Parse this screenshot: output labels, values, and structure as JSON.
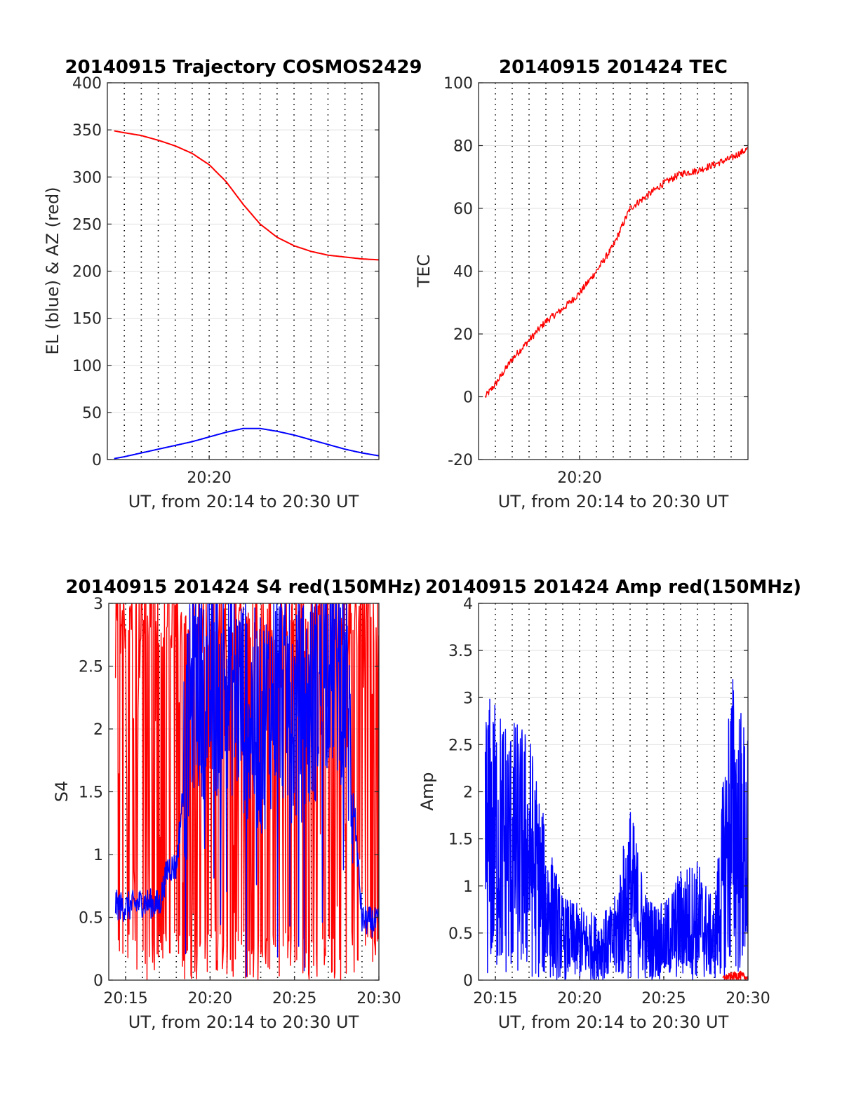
{
  "chart_data": [
    {
      "type": "line",
      "title": "20140915 Trajectory COSMOS2429",
      "xlabel": "UT, from 20:14 to 20:30 UT",
      "ylabel": "EL (blue) & AZ (red)",
      "xlim": [
        "20:14",
        "20:30"
      ],
      "ylim": [
        0,
        400
      ],
      "x_ticks": [
        "20:20"
      ],
      "y_ticks": [
        "0",
        "50",
        "100",
        "150",
        "200",
        "250",
        "300",
        "350",
        "400"
      ],
      "grid": "dotted vertical minute lines, horizontal grid",
      "series": [
        {
          "color": "#ff0000",
          "x": [
            "20:14:24",
            "20:15",
            "20:16",
            "20:17",
            "20:18",
            "20:19",
            "20:20",
            "20:21",
            "20:22",
            "20:23",
            "20:24",
            "20:25",
            "20:26",
            "20:27",
            "20:28",
            "20:29",
            "20:30"
          ],
          "values": [
            349,
            347,
            344,
            339,
            333,
            325,
            313,
            295,
            271,
            250,
            236,
            227,
            221,
            217,
            215,
            213,
            212
          ]
        },
        {
          "color": "#0000ff",
          "x": [
            "20:14:24",
            "20:15",
            "20:16",
            "20:17",
            "20:18",
            "20:19",
            "20:20",
            "20:21",
            "20:22",
            "20:23",
            "20:24",
            "20:25",
            "20:26",
            "20:27",
            "20:28",
            "20:29",
            "20:30"
          ],
          "values": [
            1,
            3,
            7,
            11,
            15,
            19,
            24,
            29,
            33,
            33,
            30,
            26,
            21,
            16,
            11,
            7,
            4
          ]
        }
      ]
    },
    {
      "type": "line",
      "title": "20140915 201424 TEC",
      "xlabel": "UT, from 20:14 to 20:30 UT",
      "ylabel": "TEC",
      "xlim": [
        "20:14",
        "20:30"
      ],
      "ylim": [
        -20,
        100
      ],
      "x_ticks": [
        "20:20"
      ],
      "y_ticks": [
        "-20",
        "0",
        "20",
        "40",
        "60",
        "80",
        "100"
      ],
      "series": [
        {
          "color": "#ff0000",
          "x": [
            "20:14:24",
            "20:15",
            "20:16",
            "20:17",
            "20:17:30",
            "20:18",
            "20:19",
            "20:20",
            "20:21",
            "20:22",
            "20:23",
            "20:24",
            "20:25",
            "20:26",
            "20:27",
            "20:28",
            "20:29",
            "20:30"
          ],
          "values": [
            0,
            4,
            12,
            18,
            21,
            24,
            28,
            33,
            40,
            48,
            60,
            64,
            68,
            71,
            72,
            74,
            76,
            79
          ]
        }
      ]
    },
    {
      "type": "line",
      "title": "20140915 201424 S4 red(150MHz)",
      "xlabel": "UT, from 20:14 to 20:30 UT",
      "ylabel": "S4",
      "xlim": [
        "20:14",
        "20:30"
      ],
      "ylim": [
        0,
        3
      ],
      "x_ticks": [
        "20:15",
        "20:20",
        "20:25",
        "20:30"
      ],
      "y_ticks": [
        "0",
        "0.5",
        "1",
        "1.5",
        "2",
        "2.5",
        "3"
      ],
      "series": [
        {
          "color": "#ff0000",
          "x": [
            "20:14:24",
            "20:15",
            "20:16",
            "20:17",
            "20:18",
            "20:19",
            "20:20",
            "20:21",
            "20:22",
            "20:23",
            "20:24",
            "20:25",
            "20:26",
            "20:27",
            "20:28",
            "20:29",
            "20:30"
          ],
          "values": [
            2.7,
            0.1,
            2.8,
            0.2,
            2.9,
            0.1,
            2.6,
            0.1,
            2.8,
            0.2,
            2.7,
            0.1,
            2.9,
            0.1,
            2.6,
            0.2,
            2.8
          ]
        },
        {
          "color": "#0000ff",
          "x": [
            "20:14:24",
            "20:15",
            "20:16",
            "20:17",
            "20:17:30",
            "20:18",
            "20:19",
            "20:20",
            "20:21",
            "20:22",
            "20:23",
            "20:24",
            "20:25",
            "20:26",
            "20:27",
            "20:28",
            "20:29",
            "20:30"
          ],
          "values": [
            0.6,
            0.58,
            0.62,
            0.6,
            0.9,
            0.9,
            2.4,
            2.3,
            2.4,
            2.2,
            2.0,
            2.4,
            2.1,
            2.2,
            2.6,
            2.4,
            0.48,
            0.45
          ]
        }
      ]
    },
    {
      "type": "line",
      "title": "20140915 201424 Amp red(150MHz)",
      "xlabel": "UT, from 20:14 to 20:30 UT",
      "ylabel": "Amp",
      "xlim": [
        "20:14",
        "20:30"
      ],
      "ylim": [
        0,
        4
      ],
      "x_ticks": [
        "20:15",
        "20:20",
        "20:25",
        "20:30"
      ],
      "y_ticks": [
        "0",
        "0.5",
        "1",
        "1.5",
        "2",
        "2.5",
        "3",
        "3.5",
        "4"
      ],
      "series": [
        {
          "color": "#0000ff",
          "x": [
            "20:14:24",
            "20:15",
            "20:16",
            "20:17",
            "20:18",
            "20:19",
            "20:20",
            "20:21",
            "20:22",
            "20:23",
            "20:24",
            "20:25",
            "20:26",
            "20:27",
            "20:28",
            "20:29",
            "20:30"
          ],
          "values": [
            3.1,
            3.0,
            2.8,
            2.7,
            1.6,
            0.9,
            0.8,
            0.7,
            0.8,
            1.9,
            0.9,
            0.8,
            1.2,
            1.3,
            0.8,
            3.4,
            2.6
          ]
        },
        {
          "color": "#ff0000",
          "x": [
            "20:28:30",
            "20:29",
            "20:29:30",
            "20:30"
          ],
          "values": [
            0.05,
            0.08,
            0.1,
            0.05
          ]
        }
      ]
    }
  ]
}
